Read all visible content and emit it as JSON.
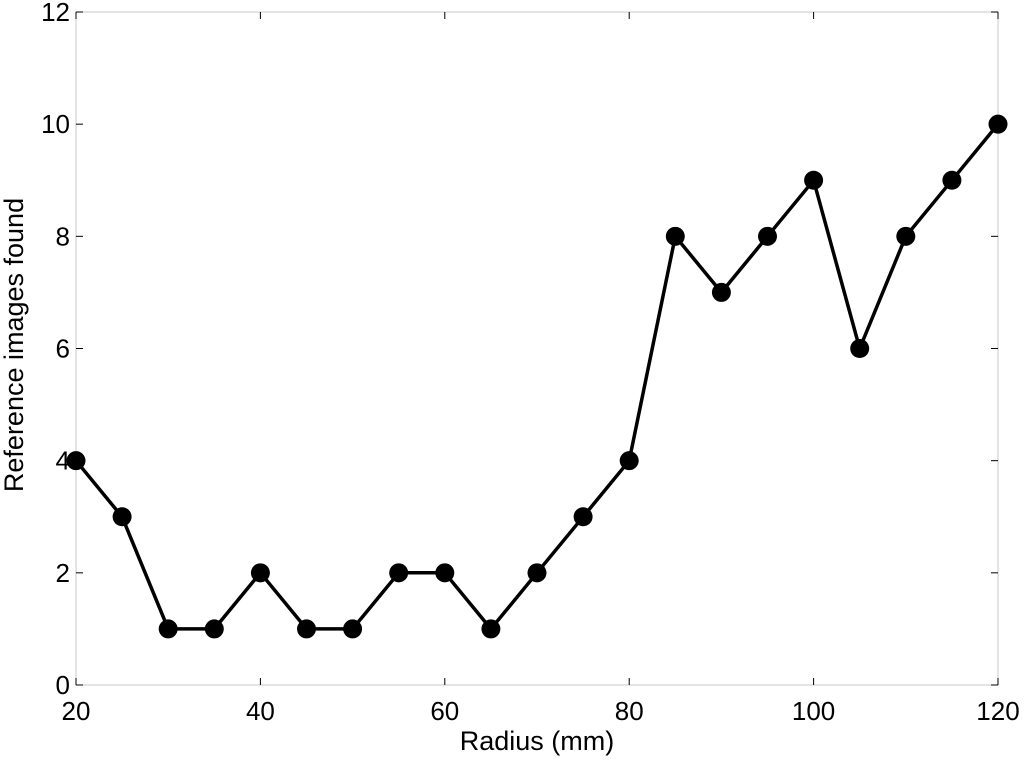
{
  "chart_data": {
    "type": "line",
    "title": "",
    "xlabel": "Radius (mm)",
    "ylabel": "Reference images found",
    "xlim": [
      20,
      120
    ],
    "ylim": [
      0,
      12
    ],
    "xticks": [
      "20",
      "40",
      "60",
      "80",
      "100",
      "120"
    ],
    "yticks": [
      "0",
      "2",
      "4",
      "6",
      "8",
      "10",
      "12"
    ],
    "grid": false,
    "legend": "none",
    "line_color": "#000000",
    "marker": "filled-circle",
    "series": [
      {
        "x": [
          20,
          25,
          30,
          35,
          40,
          45,
          50,
          55,
          60,
          65,
          70,
          75,
          80,
          85,
          90,
          95,
          100,
          105,
          110,
          115,
          120
        ],
        "y": [
          4,
          3,
          1,
          1,
          2,
          1,
          1,
          2,
          2,
          1,
          2,
          3,
          4,
          8,
          7,
          8,
          9,
          6,
          8,
          9,
          10
        ]
      }
    ]
  }
}
